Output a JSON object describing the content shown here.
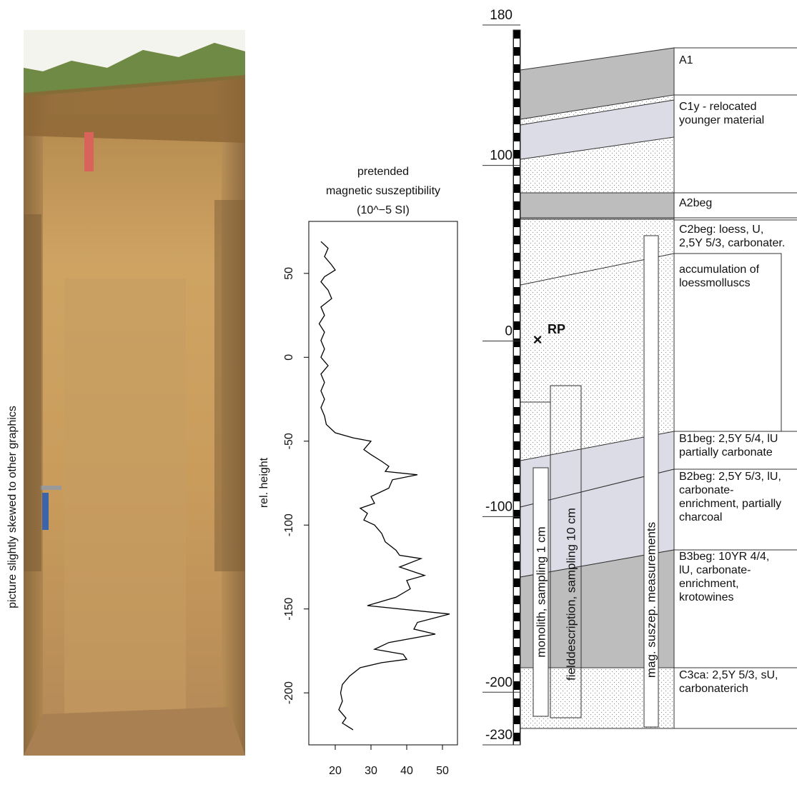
{
  "photo": {
    "caption": "picture slightly skewed to other graphics"
  },
  "chart_data": {
    "type": "line",
    "title": [
      "pretended",
      "magnetic suszeptibility",
      "(10^−5 SI)"
    ],
    "y_label": "rel. height",
    "color": "#000000",
    "y": [
      69,
      65,
      60,
      55,
      52,
      48,
      45,
      40,
      35,
      30,
      25,
      20,
      15,
      10,
      5,
      0,
      -5,
      -10,
      -15,
      -20,
      -25,
      -30,
      -35,
      -40,
      -45,
      -48,
      -50,
      -55,
      -58,
      -62,
      -65,
      -68,
      -70,
      -73,
      -78,
      -83,
      -87,
      -90,
      -93,
      -97,
      -100,
      -105,
      -110,
      -115,
      -118,
      -120,
      -125,
      -130,
      -133,
      -138,
      -143,
      -148,
      -153,
      -158,
      -162,
      -165,
      -170,
      -174,
      -177,
      -180,
      -182,
      -185,
      -190,
      -195,
      -200,
      -205,
      -210,
      -215,
      -218,
      -222
    ],
    "x": [
      16,
      18,
      17,
      19,
      20,
      17,
      16,
      18,
      19,
      16,
      17,
      15.5,
      17,
      16,
      17,
      16,
      18,
      16,
      17,
      16,
      17,
      16,
      17,
      17.5,
      20,
      25,
      30,
      28,
      30,
      33,
      35,
      34,
      43,
      36,
      35,
      30,
      31,
      27,
      29,
      28,
      31,
      33,
      34,
      37,
      38,
      44,
      38,
      45,
      40,
      41,
      37,
      29,
      52,
      43,
      42,
      48,
      35,
      31,
      39,
      40,
      33,
      27,
      24,
      22,
      21.5,
      22,
      21,
      23,
      22,
      25
    ],
    "xlim": [
      12.6,
      54.2
    ],
    "xticks": [
      20,
      30,
      40,
      50
    ],
    "ylim": [
      -231,
      81
    ],
    "yticks": [
      50,
      0,
      -50,
      -100,
      -150,
      -200
    ]
  },
  "profile": {
    "depth_ticks": [
      180,
      100,
      0,
      -100,
      -200,
      -230
    ],
    "reference": "RP",
    "horizons": [
      {
        "lines": [
          "A1"
        ]
      },
      {
        "lines": [
          "C1y - relocated",
          "younger material"
        ]
      },
      {
        "lines": [
          "A2beg"
        ]
      },
      {
        "lines": [
          "C2beg: loess, U,",
          "2,5Y 5/3, carbonater."
        ]
      },
      {
        "lines": [
          "B1beg: 2,5Y 5/4, lU",
          "partially carbonate"
        ]
      },
      {
        "lines": [
          "B2beg: 2,5Y 5/3, lU,",
          "carbonate-",
          "enrichment, partially",
          "charcoal"
        ]
      },
      {
        "lines": [
          "B3beg: 10YR 4/4,",
          "lU, carbonate-",
          "enrichment,",
          "krotowines"
        ]
      },
      {
        "lines": [
          "C3ca: 2,5Y 5/3, sU,",
          "carbonaterich"
        ]
      }
    ],
    "note": [
      "accumulation of",
      "loessmolluscs"
    ],
    "samplings": [
      "monolith, sampling 1 cm",
      "fielddescription, sampling 10 cm",
      "mag. suszep. measurements"
    ]
  }
}
